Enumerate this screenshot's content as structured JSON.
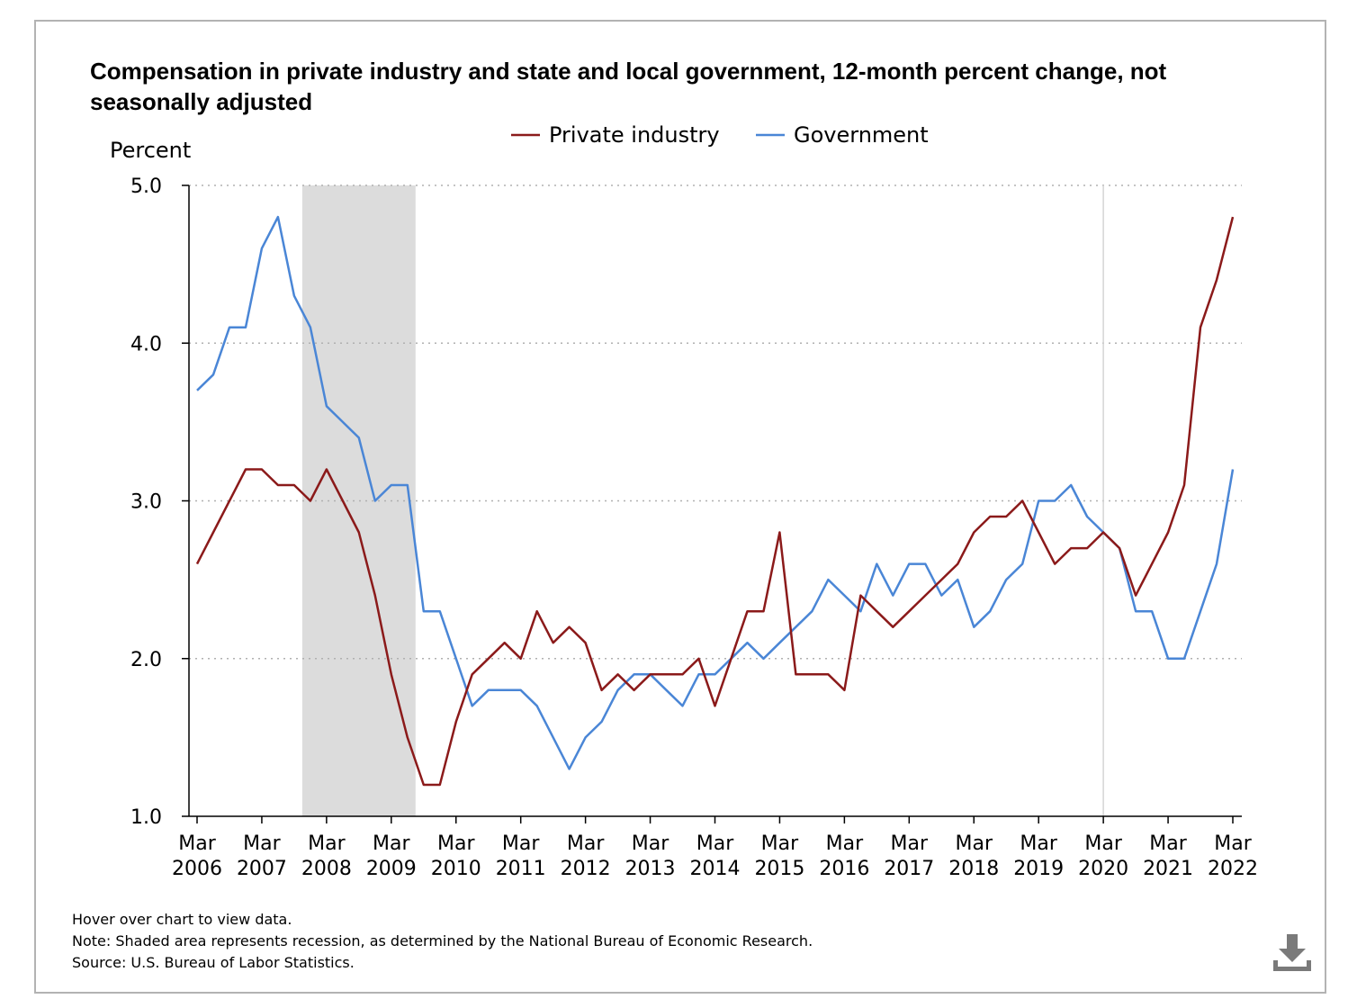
{
  "chart_data": {
    "type": "line",
    "title": "Compensation in private industry and state and local government, 12-month percent change, not seasonally adjusted",
    "ylabel": "Percent",
    "xlabel": "",
    "ylim": [
      1.0,
      5.0
    ],
    "yticks": [
      "1.0",
      "2.0",
      "3.0",
      "4.0",
      "5.0"
    ],
    "ytick_values": [
      1.0,
      2.0,
      3.0,
      4.0,
      5.0
    ],
    "xtick_labels": [
      {
        "month": "Mar",
        "year": "2006"
      },
      {
        "month": "Mar",
        "year": "2007"
      },
      {
        "month": "Mar",
        "year": "2008"
      },
      {
        "month": "Mar",
        "year": "2009"
      },
      {
        "month": "Mar",
        "year": "2010"
      },
      {
        "month": "Mar",
        "year": "2011"
      },
      {
        "month": "Mar",
        "year": "2012"
      },
      {
        "month": "Mar",
        "year": "2013"
      },
      {
        "month": "Mar",
        "year": "2014"
      },
      {
        "month": "Mar",
        "year": "2015"
      },
      {
        "month": "Mar",
        "year": "2016"
      },
      {
        "month": "Mar",
        "year": "2017"
      },
      {
        "month": "Mar",
        "year": "2018"
      },
      {
        "month": "Mar",
        "year": "2019"
      },
      {
        "month": "Mar",
        "year": "2020"
      },
      {
        "month": "Mar",
        "year": "2021"
      },
      {
        "month": "Mar",
        "year": "2022"
      }
    ],
    "quarter_count": 65,
    "recession_quarter_range": [
      7,
      13
    ],
    "reference_line_quarter": 56,
    "grid": "horizontal dotted",
    "legend_position": "top-center",
    "series": [
      {
        "name": "Private industry",
        "color": "#8b1a1a",
        "values": [
          2.6,
          2.8,
          3.0,
          3.2,
          3.2,
          3.1,
          3.1,
          3.0,
          3.2,
          3.0,
          2.8,
          2.4,
          1.9,
          1.5,
          1.2,
          1.2,
          1.6,
          1.9,
          2.0,
          2.1,
          2.0,
          2.3,
          2.1,
          2.2,
          2.1,
          1.8,
          1.9,
          1.8,
          1.9,
          1.9,
          1.9,
          2.0,
          1.7,
          2.0,
          2.3,
          2.3,
          2.8,
          1.9,
          1.9,
          1.9,
          1.8,
          2.4,
          2.3,
          2.2,
          2.3,
          2.4,
          2.5,
          2.6,
          2.8,
          2.9,
          2.9,
          3.0,
          2.8,
          2.6,
          2.7,
          2.7,
          2.8,
          2.7,
          2.4,
          2.6,
          2.8,
          3.1,
          4.1,
          4.4,
          4.8
        ]
      },
      {
        "name": "Government",
        "color": "#4a86d6",
        "values": [
          3.7,
          3.8,
          4.1,
          4.1,
          4.6,
          4.8,
          4.3,
          4.1,
          3.6,
          3.5,
          3.4,
          3.0,
          3.1,
          3.1,
          2.3,
          2.3,
          2.0,
          1.7,
          1.8,
          1.8,
          1.8,
          1.7,
          1.5,
          1.3,
          1.5,
          1.6,
          1.8,
          1.9,
          1.9,
          1.8,
          1.7,
          1.9,
          1.9,
          2.0,
          2.1,
          2.0,
          2.1,
          2.2,
          2.3,
          2.5,
          2.4,
          2.3,
          2.6,
          2.4,
          2.6,
          2.6,
          2.4,
          2.5,
          2.2,
          2.3,
          2.5,
          2.6,
          3.0,
          3.0,
          3.1,
          2.9,
          2.8,
          2.7,
          2.3,
          2.3,
          2.0,
          2.0,
          2.3,
          2.6,
          3.2
        ]
      }
    ]
  },
  "footnotes": {
    "hover": "Hover over chart to view data.",
    "note": "Note: Shaded area represents recession, as determined by the National Bureau of Economic Research.",
    "source": "Source: U.S. Bureau of Labor Statistics."
  },
  "colors": {
    "recession_fill": "#dcdcdc",
    "grid": "#b0b0b0",
    "axis": "#000000",
    "download_icon": "#7a7a7a"
  },
  "icons": {
    "download": "download-icon"
  }
}
